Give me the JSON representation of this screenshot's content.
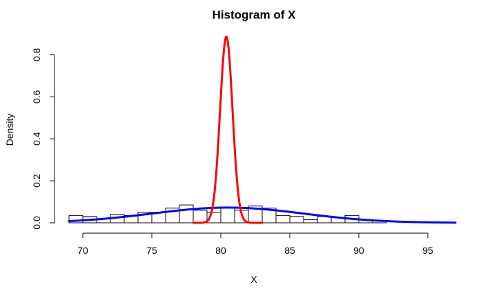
{
  "chart_data": {
    "type": "bar",
    "title": "Histogram of X",
    "xlabel": "X",
    "ylabel": "Density",
    "xlim": [
      69,
      97
    ],
    "ylim": [
      0,
      0.9
    ],
    "x_ticks": [
      70,
      75,
      80,
      85,
      90,
      95
    ],
    "y_ticks": [
      0.0,
      0.2,
      0.4,
      0.6,
      0.8
    ],
    "y_tick_labels": [
      "0.0",
      "0.2",
      "0.4",
      "0.6",
      "0.8"
    ],
    "grid": false,
    "bins": [
      {
        "from": 69,
        "to": 70,
        "density": 0.035
      },
      {
        "from": 70,
        "to": 71,
        "density": 0.03
      },
      {
        "from": 71,
        "to": 72,
        "density": 0.02
      },
      {
        "from": 72,
        "to": 73,
        "density": 0.04
      },
      {
        "from": 73,
        "to": 74,
        "density": 0.035
      },
      {
        "from": 74,
        "to": 75,
        "density": 0.05
      },
      {
        "from": 75,
        "to": 76,
        "density": 0.05
      },
      {
        "from": 76,
        "to": 77,
        "density": 0.07
      },
      {
        "from": 77,
        "to": 78,
        "density": 0.085
      },
      {
        "from": 78,
        "to": 79,
        "density": 0.06
      },
      {
        "from": 79,
        "to": 80,
        "density": 0.05
      },
      {
        "from": 80,
        "to": 81,
        "density": 0.07
      },
      {
        "from": 81,
        "to": 82,
        "density": 0.06
      },
      {
        "from": 82,
        "to": 83,
        "density": 0.08
      },
      {
        "from": 83,
        "to": 84,
        "density": 0.07
      },
      {
        "from": 84,
        "to": 85,
        "density": 0.035
      },
      {
        "from": 85,
        "to": 86,
        "density": 0.03
      },
      {
        "from": 86,
        "to": 87,
        "density": 0.015
      },
      {
        "from": 87,
        "to": 88,
        "density": 0.03
      },
      {
        "from": 88,
        "to": 89,
        "density": 0.025
      },
      {
        "from": 89,
        "to": 90,
        "density": 0.035
      },
      {
        "from": 90,
        "to": 91,
        "density": 0.015
      },
      {
        "from": 91,
        "to": 92,
        "density": 0.01
      }
    ],
    "series": [
      {
        "type": "normal-density-curve",
        "color": "#0000ff",
        "mean": 80.5,
        "sd": 5.5,
        "x_range": [
          69,
          97
        ]
      },
      {
        "type": "normal-density-curve",
        "color": "#ff0000",
        "mean": 80.4,
        "sd": 0.45,
        "x_range": [
          78,
          83
        ]
      }
    ]
  }
}
